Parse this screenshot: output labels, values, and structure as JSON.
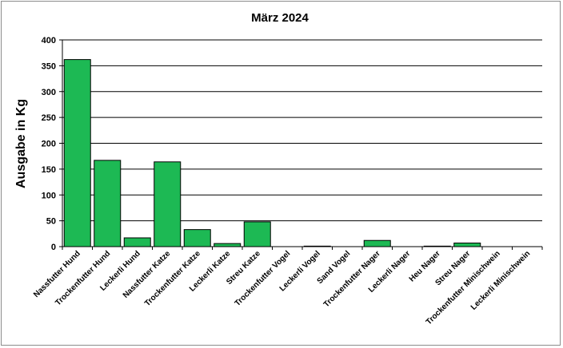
{
  "chart_data": {
    "type": "bar",
    "title": "März 2024",
    "xlabel": "",
    "ylabel": "Ausgabe in Kg",
    "ylim": [
      0,
      400
    ],
    "yticks": [
      "0",
      "50",
      "100",
      "150",
      "200",
      "250",
      "300",
      "350",
      "400"
    ],
    "grid": true,
    "legend": "none",
    "bar_color": "#1db954",
    "categories": [
      "Nassfutter Hund",
      "Trockenfutter Hund",
      "Leckerli Hund",
      "Nassfutter Katze",
      "Trockenfutter Katze",
      "Leckerli Katze",
      "Streu Katze",
      "Trockenfutter Vogel",
      "Leckerli Vogel",
      "Sand Vogel",
      "Trockenfutter Nager",
      "Leckerli Nager",
      "Heu Nager",
      "Streu Nager",
      "Trockenfutter Minischwein",
      "Leckerli Minischwein"
    ],
    "values": [
      362,
      167,
      17,
      164,
      33,
      6,
      48,
      0,
      1,
      0,
      12,
      0,
      1,
      7,
      0,
      0
    ]
  }
}
